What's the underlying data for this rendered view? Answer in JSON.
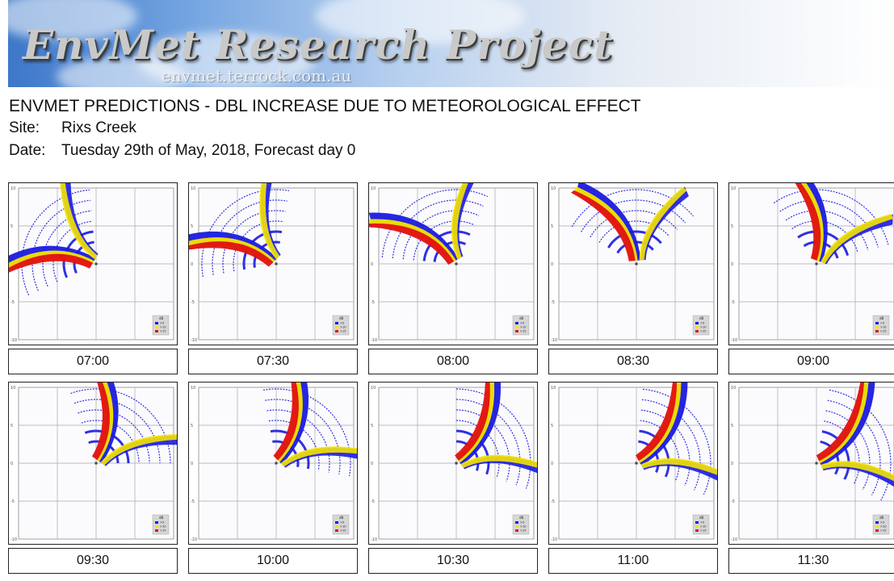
{
  "banner": {
    "title": "EnvMet Research Project",
    "url": "envmet.terrock.com.au"
  },
  "report": {
    "heading": "ENVMET PREDICTIONS - DBL INCREASE DUE TO METEOROLOGICAL EFFECT",
    "site_label": "Site:",
    "site_value": "Rixs Creek",
    "date_label": "Date:",
    "date_value": "Tuesday 29th of May, 2018, Forecast day 0"
  },
  "legend": {
    "title": "dB",
    "items": [
      {
        "label": ">5",
        "color": "#1a1ae0"
      },
      {
        "label": ">10",
        "color": "#f5e400"
      },
      {
        "label": ">15",
        "color": "#e01010"
      }
    ]
  },
  "axis_ticks": [
    "10",
    "5",
    "0",
    "-5",
    "-10"
  ],
  "colors": {
    "blue": "#1a1ae0",
    "yellow": "#f5e400",
    "red": "#e01010",
    "grid": "#a8a8a8"
  },
  "panels": [
    {
      "time": "07:00"
    },
    {
      "time": "07:30"
    },
    {
      "time": "08:00"
    },
    {
      "time": "08:30"
    },
    {
      "time": "09:00"
    },
    {
      "time": "09:30"
    },
    {
      "time": "10:00"
    },
    {
      "time": "10:30"
    },
    {
      "time": "11:00"
    },
    {
      "time": "11:30"
    }
  ]
}
